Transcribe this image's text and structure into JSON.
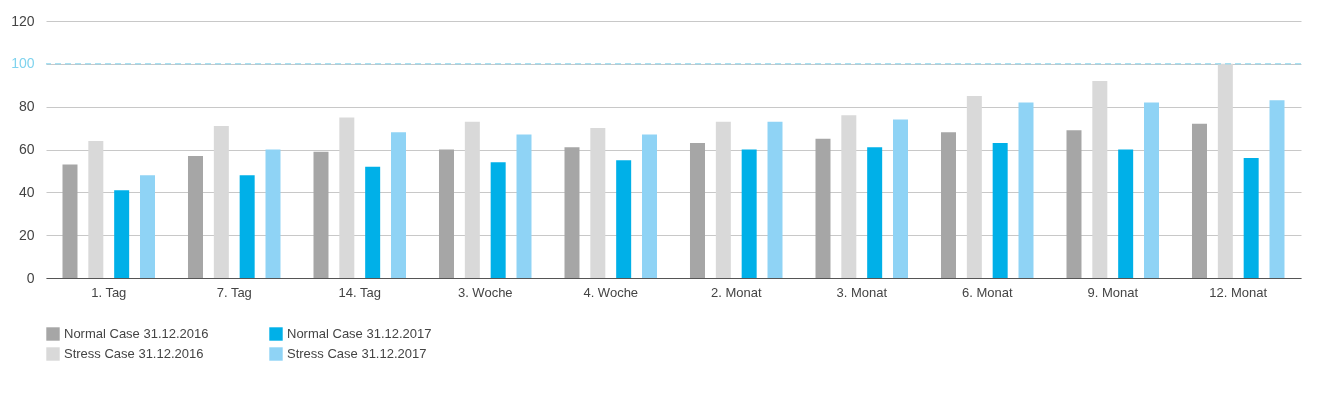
{
  "chart_data": {
    "type": "bar",
    "categories": [
      "1. Tag",
      "7. Tag",
      "14. Tag",
      "3. Woche",
      "4. Woche",
      "2. Monat",
      "3. Monat",
      "6. Monat",
      "9. Monat",
      "12. Monat"
    ],
    "series": [
      {
        "name": "Normal Case 31.12.2016",
        "color": "#a6a6a6",
        "values": [
          53,
          57,
          59,
          60,
          61,
          63,
          65,
          68,
          69,
          72
        ]
      },
      {
        "name": "Stress Case 31.12.2016",
        "color": "#d9d9d9",
        "values": [
          64,
          71,
          75,
          73,
          70,
          73,
          76,
          85,
          92,
          100
        ]
      },
      {
        "name": "Normal Case 31.12.2017",
        "color": "#00b0e8",
        "values": [
          41,
          48,
          52,
          54,
          55,
          60,
          61,
          63,
          60,
          56
        ]
      },
      {
        "name": "Stress Case 31.12.2017",
        "color": "#8fd3f5",
        "values": [
          48,
          60,
          68,
          67,
          67,
          73,
          74,
          82,
          82,
          83
        ]
      }
    ],
    "ylim": [
      0,
      120
    ],
    "yticks": [
      0,
      20,
      40,
      60,
      80,
      100,
      120
    ],
    "ref_lines": [
      {
        "axis": "y",
        "value": 100,
        "color": "#7fd3ee",
        "line_style": "dashed"
      }
    ],
    "grid": "y",
    "legend": "bottom left"
  }
}
